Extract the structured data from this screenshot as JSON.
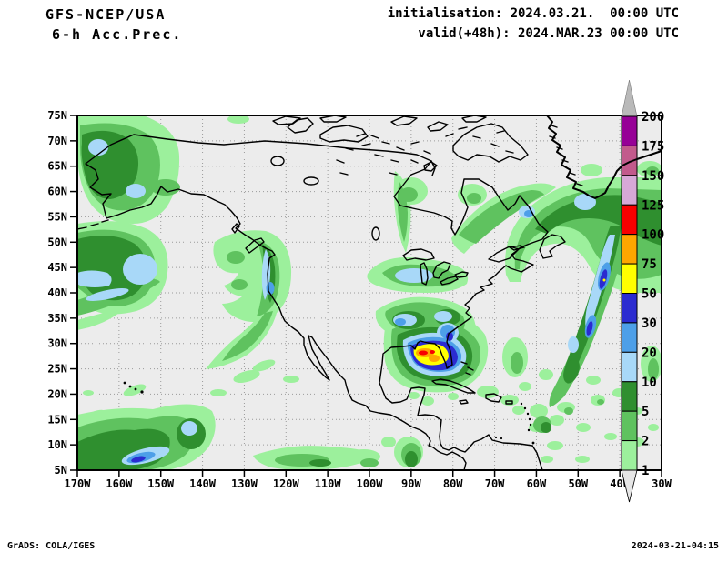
{
  "header": {
    "line1": "GFS-NCEP/USA",
    "line2": "6-h Acc.Prec.",
    "init": "initialisation: 2024.03.21.  00:00 UTC",
    "valid": "valid(+48h): 2024.MAR.23 00:00 UTC"
  },
  "footer": {
    "left": "GrADS: COLA/IGES",
    "right": "2024-03-21-04:15"
  },
  "axes": {
    "lat": [
      "75N",
      "70N",
      "65N",
      "60N",
      "55N",
      "50N",
      "45N",
      "40N",
      "35N",
      "30N",
      "25N",
      "20N",
      "15N",
      "10N",
      "5N"
    ],
    "lon": [
      "170W",
      "160W",
      "150W",
      "140W",
      "130W",
      "120W",
      "110W",
      "100W",
      "90W",
      "80W",
      "70W",
      "60W",
      "50W",
      "40W",
      "30W"
    ]
  },
  "colorbar": {
    "labels": [
      "200",
      "175",
      "150",
      "125",
      "100",
      "75",
      "50",
      "30",
      "20",
      "10",
      "5",
      "2",
      "1"
    ],
    "colors_top_to_bottom": [
      "#960096",
      "#c25a8c",
      "#d7a8d7",
      "#f80000",
      "#ffa600",
      "#ffff00",
      "#2b2bd0",
      "#4d9fe8",
      "#a8d8f8",
      "#2f8f2f",
      "#5fc25f",
      "#9cf09c"
    ],
    "arrow_top_color": "#b9b9b9",
    "arrow_bottom_color": "#e6e6e6"
  },
  "map_style": {
    "background": "#ececec",
    "grid_color": "#9a9a9a",
    "coast_color": "#000000",
    "frame_color": "#000000"
  },
  "chart_data": {
    "type": "heatmap",
    "title": "GFS-NCEP/USA 6-h Acc.Prec.",
    "init_time": "2024.03.21 00:00 UTC",
    "valid_time": "2024.MAR.23 00:00 UTC (+48h)",
    "lon_range": [
      "170W",
      "30W"
    ],
    "lat_range": [
      "5N",
      "75N"
    ],
    "shading_levels_mm": [
      1,
      2,
      5,
      10,
      20,
      30,
      50,
      75,
      100,
      125,
      150,
      175,
      200
    ],
    "shading_colors_low_to_high": [
      "#9cf09c",
      "#5fc25f",
      "#2f8f2f",
      "#a8d8f8",
      "#4d9fe8",
      "#2b2bd0",
      "#ffff00",
      "#ffa600",
      "#f80000",
      "#d7a8d7",
      "#c25a8c",
      "#960096"
    ],
    "features": [
      {
        "region": "Gulf of Mexico near 26N 88W",
        "max_band_mm": "100-125",
        "note": "intense core (red/orange/yellow) ringed by dark blue, blue and green"
      },
      {
        "region": "Interior Alaska 60-70N 145-165W",
        "max_band_mm": "10-20"
      },
      {
        "region": "North Pacific 44-52N 150-170W",
        "max_band_mm": "10-20",
        "note": "broad green mass with light-blue cores"
      },
      {
        "region": "Pacific Northwest coast 40-52N 125-135W",
        "max_band_mm": "20-30",
        "note": "comma-shaped coastal band"
      },
      {
        "region": "Subtropical Pacific 5-12N 140-170W",
        "max_band_mm": "30-50",
        "note": "elongated band with small dark-blue core"
      },
      {
        "region": "Great Lakes and Southeast US",
        "max_band_mm": "10-30"
      },
      {
        "region": "Northwest Atlantic east of Newfoundland 30-55N 30-45W",
        "max_band_mm": "50-75",
        "note": "large storm with diagonal blue band, tiny yellow spot"
      },
      {
        "region": "Labrador Sea / south Greenland",
        "max_band_mm": "10-20"
      },
      {
        "region": "ITCZ patches 5-10N 90-135W",
        "max_band_mm": "5-10"
      }
    ]
  }
}
